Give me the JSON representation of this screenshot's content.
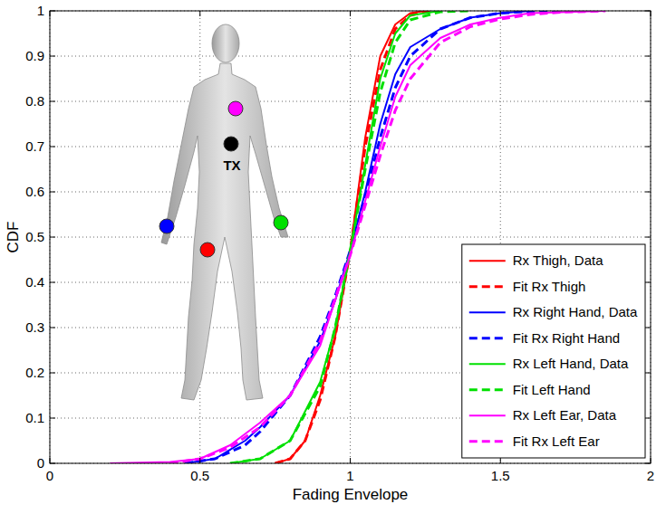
{
  "chart_data": {
    "type": "line",
    "xlabel": "Fading Envelope",
    "ylabel": "CDF",
    "annotation": "TX",
    "xlim": [
      0,
      2
    ],
    "ylim": [
      0,
      1
    ],
    "xticks": [
      0,
      0.5,
      1,
      1.5,
      2
    ],
    "yticks": [
      0,
      0.1,
      0.2,
      0.3,
      0.4,
      0.5,
      0.6,
      0.7,
      0.8,
      0.9,
      1
    ],
    "grid": true,
    "legend": "lower right",
    "series": [
      {
        "name": "Rx Thigh, Data",
        "color": "#ff0000",
        "line_style": "solid",
        "x": [
          0.75,
          0.8,
          0.85,
          0.9,
          0.95,
          1.0,
          1.05,
          1.1,
          1.15,
          1.2,
          1.25
        ],
        "values": [
          0,
          0.01,
          0.05,
          0.15,
          0.28,
          0.47,
          0.72,
          0.9,
          0.97,
          0.995,
          1.0
        ]
      },
      {
        "name": "Fit Rx Thigh",
        "color": "#ff0000",
        "line_style": "dashed",
        "x": [
          0.75,
          0.8,
          0.85,
          0.9,
          0.95,
          1.0,
          1.05,
          1.1,
          1.15,
          1.2,
          1.25,
          1.3
        ],
        "values": [
          0,
          0.01,
          0.05,
          0.14,
          0.28,
          0.47,
          0.7,
          0.87,
          0.96,
          0.99,
          0.998,
          1.0
        ]
      },
      {
        "name": "Rx Right Hand, Data",
        "color": "#0000ff",
        "line_style": "solid",
        "x": [
          0.45,
          0.55,
          0.65,
          0.7,
          0.8,
          0.9,
          0.95,
          1.0,
          1.05,
          1.1,
          1.15,
          1.2,
          1.3,
          1.4,
          1.5,
          1.6
        ],
        "values": [
          0,
          0.01,
          0.05,
          0.08,
          0.15,
          0.27,
          0.36,
          0.47,
          0.6,
          0.75,
          0.86,
          0.92,
          0.96,
          0.985,
          0.995,
          1.0
        ]
      },
      {
        "name": "Fit Rx Right Hand",
        "color": "#0000ff",
        "line_style": "dashed",
        "x": [
          0.45,
          0.55,
          0.65,
          0.7,
          0.8,
          0.9,
          0.95,
          1.0,
          1.05,
          1.1,
          1.15,
          1.2,
          1.3,
          1.4,
          1.5,
          1.6,
          1.7
        ],
        "values": [
          0,
          0.01,
          0.04,
          0.07,
          0.15,
          0.28,
          0.37,
          0.47,
          0.59,
          0.72,
          0.83,
          0.9,
          0.96,
          0.985,
          0.995,
          0.999,
          1.0
        ]
      },
      {
        "name": "Rx Left Hand, Data",
        "color": "#00e000",
        "line_style": "solid",
        "x": [
          0.6,
          0.7,
          0.8,
          0.9,
          0.95,
          1.0,
          1.05,
          1.1,
          1.15,
          1.2,
          1.3
        ],
        "values": [
          0,
          0.01,
          0.05,
          0.18,
          0.3,
          0.47,
          0.66,
          0.85,
          0.95,
          0.99,
          1.0
        ]
      },
      {
        "name": "Fit Left Hand",
        "color": "#00e000",
        "line_style": "dashed",
        "x": [
          0.6,
          0.7,
          0.8,
          0.9,
          0.95,
          1.0,
          1.05,
          1.1,
          1.15,
          1.2,
          1.3,
          1.4
        ],
        "values": [
          0,
          0.01,
          0.05,
          0.17,
          0.3,
          0.47,
          0.65,
          0.82,
          0.93,
          0.98,
          0.998,
          1.0
        ]
      },
      {
        "name": "Rx Left Ear, Data",
        "color": "#ff00ff",
        "line_style": "solid",
        "x": [
          0.2,
          0.4,
          0.5,
          0.6,
          0.7,
          0.8,
          0.9,
          1.0,
          1.05,
          1.1,
          1.15,
          1.2,
          1.3,
          1.4,
          1.5,
          1.6,
          1.85
        ],
        "values": [
          0,
          0.003,
          0.01,
          0.04,
          0.09,
          0.15,
          0.26,
          0.46,
          0.58,
          0.7,
          0.81,
          0.88,
          0.94,
          0.97,
          0.985,
          0.995,
          1.0
        ]
      },
      {
        "name": "Fit Rx Left Ear",
        "color": "#ff00ff",
        "line_style": "dashed",
        "x": [
          0.4,
          0.5,
          0.6,
          0.7,
          0.8,
          0.9,
          1.0,
          1.05,
          1.1,
          1.15,
          1.2,
          1.3,
          1.4,
          1.5,
          1.6,
          1.7,
          1.85
        ],
        "values": [
          0,
          0.01,
          0.035,
          0.08,
          0.15,
          0.27,
          0.46,
          0.57,
          0.68,
          0.78,
          0.85,
          0.93,
          0.965,
          0.982,
          0.992,
          0.997,
          1.0
        ]
      }
    ]
  }
}
